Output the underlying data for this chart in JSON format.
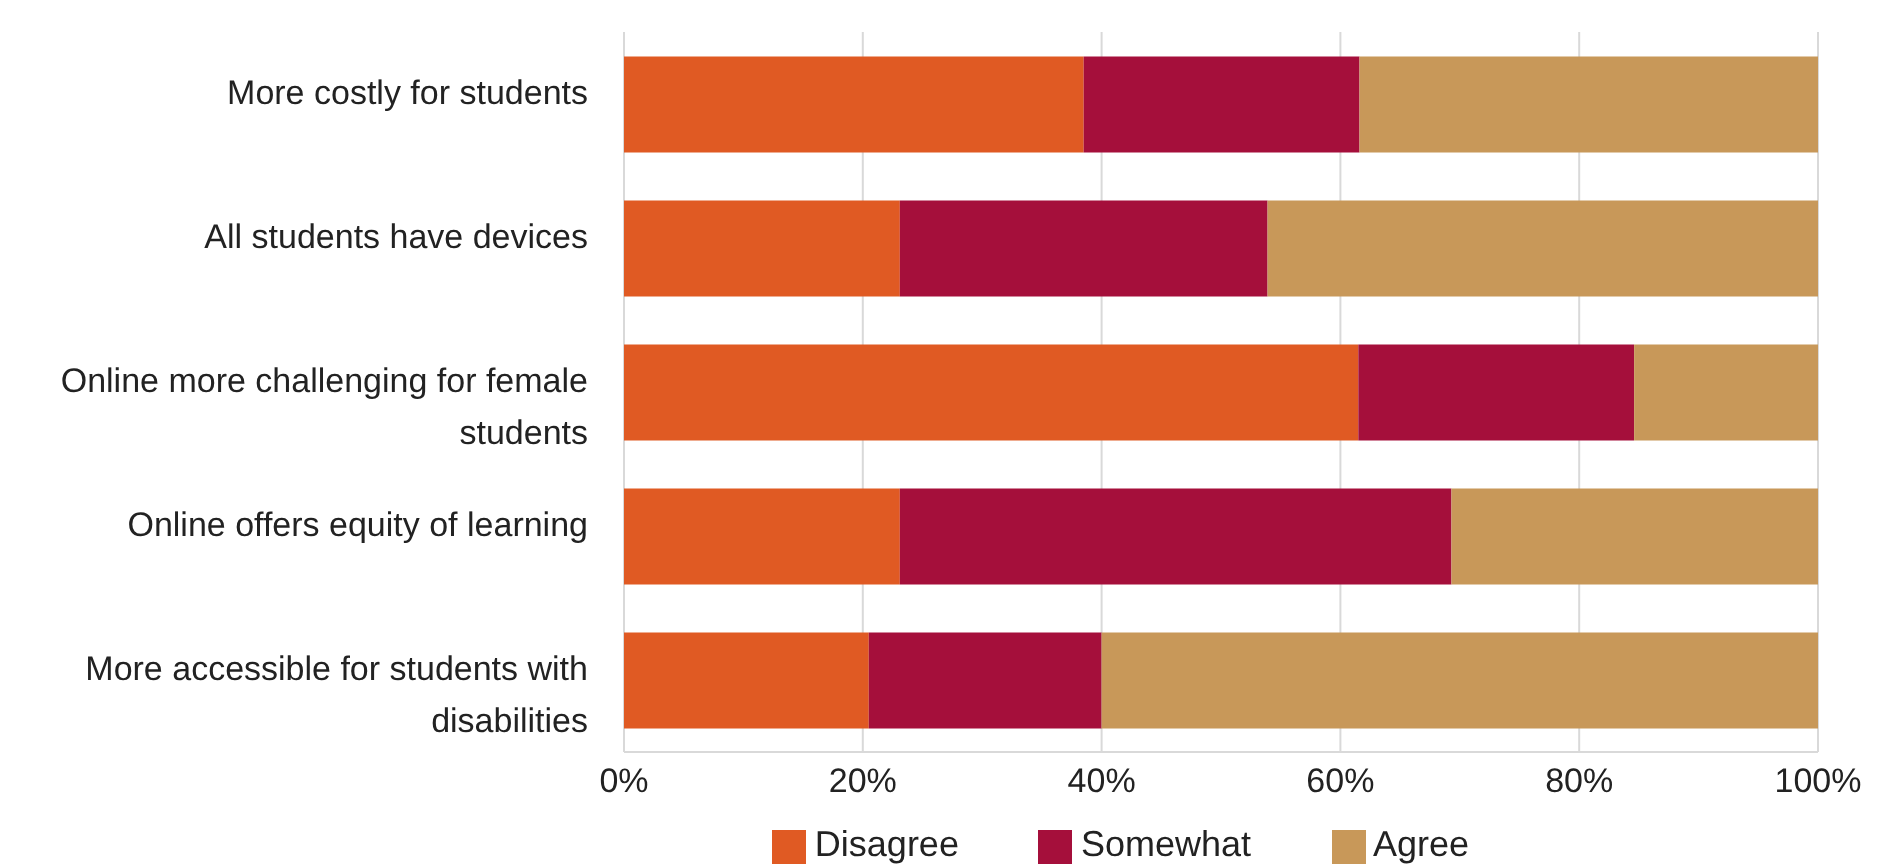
{
  "chart_data": {
    "type": "bar",
    "orientation": "horizontal",
    "stacked": true,
    "categories": [
      "More costly for students",
      "All students have devices",
      "Online more challenging for female students",
      "Online offers equity of learning",
      "More accessible for students with disabilities"
    ],
    "series": [
      {
        "name": "Disagree",
        "color": "#e05a23",
        "values": [
          38.5,
          23.1,
          61.5,
          23.1,
          20.5
        ]
      },
      {
        "name": "Somewhat",
        "color": "#a50f3b",
        "values": [
          23.1,
          30.8,
          23.1,
          46.2,
          19.5
        ]
      },
      {
        "name": "Agree",
        "color": "#c89859",
        "values": [
          38.4,
          46.1,
          15.4,
          30.7,
          60
        ]
      }
    ],
    "xlim": [
      0,
      100
    ],
    "xticks": [
      {
        "value": 0,
        "label": "0%"
      },
      {
        "value": 20,
        "label": "20%"
      },
      {
        "value": 40,
        "label": "40%"
      },
      {
        "value": 60,
        "label": "60%"
      },
      {
        "value": 80,
        "label": "80%"
      },
      {
        "value": 100,
        "label": "100%"
      }
    ],
    "grid": "x",
    "legend": "bottom"
  }
}
